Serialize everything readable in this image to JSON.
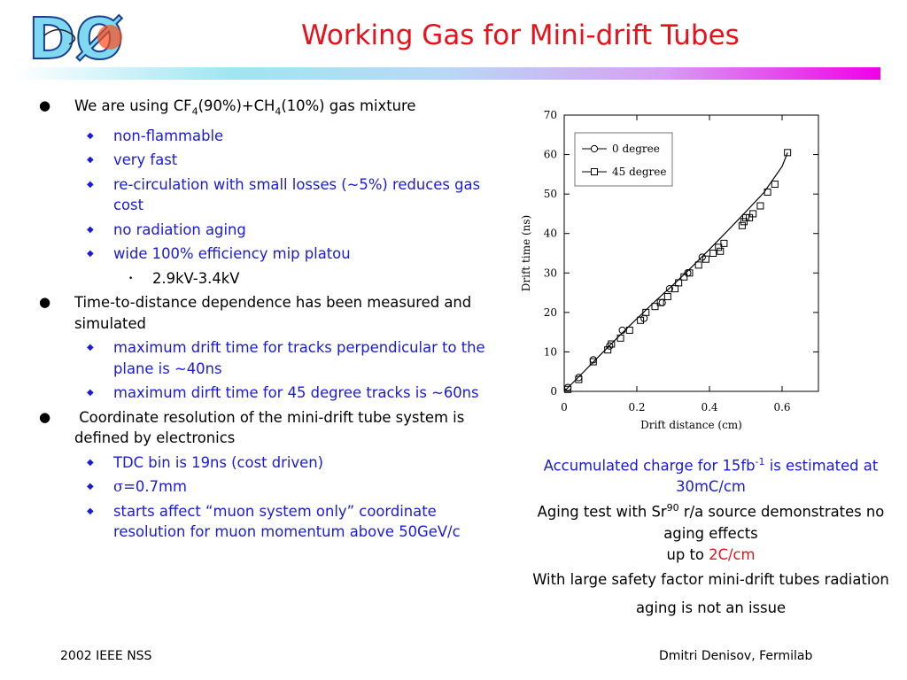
{
  "slide": {
    "logo_text": "DØ",
    "title": "Working Gas for Mini-drift Tubes",
    "title_color": "#e8101a",
    "accent_blue": "#1a1adb"
  },
  "bullets": {
    "b1": {
      "pre": "We are using CF",
      "sub1": "4",
      "mid": "(90%)+CH",
      "sub2": "4",
      "post": "(10%) gas mixture"
    },
    "b1_items": [
      "non-flammable",
      "very fast",
      "re-circulation with small losses (~5%) reduces gas cost",
      "no radiation aging",
      "wide 100% efficiency mip platou"
    ],
    "b1_sub": "2.9kV-3.4kV",
    "b2": "Time-to-distance dependence has been measured and simulated",
    "b2_items": [
      "maximum drift time for tracks perpendicular to the plane is ~40ns",
      "maximum dirft time for 45 degree tracks is ~60ns"
    ],
    "b3": " Coordinate resolution of the mini-drift tube system is defined by electronics",
    "b3_items": {
      "tdc": "TDC bin is 19ns (cost driven)",
      "sigma_symbol": "σ",
      "sigma_rest": "=0.7mm",
      "starts": "starts affect “muon system only” coordinate resolution for muon momentum above 50GeV/c"
    }
  },
  "caption": {
    "l1_pre": "Accumulated charge for 15fb",
    "l1_sup": "-1",
    "l1_post": " is estimated at 30mC/cm",
    "l2_pre": "Aging test with Sr",
    "l2_sup": "90",
    "l2_post": " r/a source demonstrates no aging effects",
    "l3_pre": "up to ",
    "l3_red": "2C/cm",
    "l4": "With large safety factor mini-drift tubes radiation aging is not an issue"
  },
  "footer": {
    "left": "2002 IEEE NSS",
    "right": "Dmitri Denisov, Fermilab"
  },
  "chart_data": {
    "type": "scatter",
    "xlabel": "Drift distance (cm)",
    "ylabel": "Drift time (ns)",
    "xlim": [
      0,
      0.7
    ],
    "ylim": [
      0,
      70
    ],
    "x_ticks": [
      "0",
      "0.2",
      "0.4",
      "0.6"
    ],
    "y_ticks": [
      "0",
      "10",
      "20",
      "30",
      "40",
      "50",
      "60",
      "70"
    ],
    "legend_position": "top-left",
    "series": [
      {
        "name": "0 degree",
        "marker": "circle",
        "x": [
          0.01,
          0.04,
          0.08,
          0.125,
          0.16,
          0.22,
          0.27,
          0.29,
          0.34,
          0.38
        ],
        "y": [
          1,
          3.5,
          8,
          11.5,
          15.5,
          18.5,
          22.5,
          26,
          30,
          34
        ]
      },
      {
        "name": "45 degree",
        "marker": "square",
        "x": [
          0.01,
          0.04,
          0.08,
          0.12,
          0.13,
          0.155,
          0.18,
          0.21,
          0.225,
          0.25,
          0.265,
          0.285,
          0.305,
          0.315,
          0.33,
          0.345,
          0.37,
          0.39,
          0.41,
          0.425,
          0.43,
          0.44,
          0.49,
          0.495,
          0.5,
          0.51,
          0.52,
          0.54,
          0.56,
          0.58,
          0.615
        ],
        "y": [
          0.5,
          3,
          7.5,
          10.5,
          12,
          13.5,
          15.5,
          18,
          20,
          21.5,
          22.5,
          24,
          26,
          27.5,
          29,
          30,
          32,
          33.5,
          35,
          36.5,
          35.5,
          37.5,
          42,
          43,
          44,
          44,
          45,
          47,
          50.5,
          52.5,
          60.5
        ]
      }
    ],
    "fit_line": {
      "x": [
        0,
        0.05,
        0.1,
        0.15,
        0.2,
        0.25,
        0.3,
        0.35,
        0.4,
        0.45,
        0.5,
        0.55,
        0.6,
        0.615
      ],
      "y": [
        0,
        4.6,
        9.3,
        13.9,
        18.4,
        22.8,
        27.0,
        31.4,
        36.0,
        40.7,
        45.5,
        50.4,
        57.0,
        60.5
      ]
    }
  }
}
